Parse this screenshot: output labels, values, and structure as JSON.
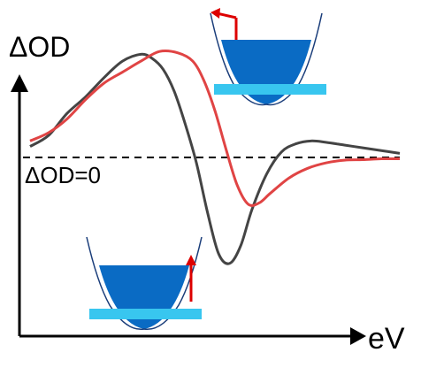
{
  "chart_data": {
    "type": "line",
    "title": "",
    "ylabel": "ΔOD",
    "xlabel": "eV",
    "zero_label": "ΔOD=0",
    "x_units": "arbitrary",
    "y_units": "arbitrary",
    "xlim": [
      0,
      100
    ],
    "ylim": [
      -45,
      45
    ],
    "grid": false,
    "legend": "none",
    "zero_line": 0,
    "series": [
      {
        "color": "#444444",
        "x": [
          0,
          5,
          10,
          15,
          20,
          25,
          30,
          33,
          36,
          39,
          42,
          45,
          48,
          51,
          54,
          57,
          60,
          64,
          68,
          72,
          76,
          80,
          85,
          90,
          95,
          100
        ],
        "y": [
          4,
          8,
          16,
          22,
          29,
          35,
          37.5,
          36,
          32,
          24,
          12,
          -2,
          -20,
          -35,
          -38.5,
          -32,
          -19,
          -6,
          2,
          5,
          6,
          5.5,
          4.5,
          3.5,
          2.5,
          1.5
        ]
      },
      {
        "color": "#e04444",
        "x": [
          0,
          5,
          10,
          15,
          20,
          25,
          30,
          35,
          40,
          44,
          47,
          50,
          53,
          56,
          59,
          62,
          65,
          70,
          75,
          80,
          85,
          90,
          95,
          100
        ],
        "y": [
          6,
          9,
          14,
          21,
          27,
          31,
          35,
          38.5,
          38,
          35,
          28,
          17,
          3,
          -10,
          -17,
          -16.5,
          -13,
          -7.5,
          -4,
          -2,
          -1,
          -0.8,
          -0.5,
          -0.5
        ]
      }
    ]
  },
  "insets": {
    "top_right": {
      "arrow_color": "#dd0000"
    },
    "bottom_left": {
      "arrow_color": "#dd0000"
    },
    "colors": {
      "well": "#0a6bc4",
      "band": "#38c6ef"
    }
  }
}
